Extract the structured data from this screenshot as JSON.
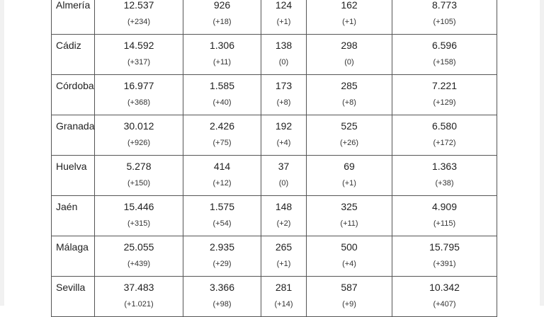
{
  "rows": [
    {
      "province": "Almería",
      "c1": "12.537",
      "d1": "(+234)",
      "c2": "926",
      "d2": "(+18)",
      "c3": "124",
      "d3": "(+1)",
      "c4": "162",
      "d4": "(+1)",
      "c5": "8.773",
      "d5": "(+105)"
    },
    {
      "province": "Cádiz",
      "c1": "14.592",
      "d1": "(+317)",
      "c2": "1.306",
      "d2": "(+11)",
      "c3": "138",
      "d3": "(0)",
      "c4": "298",
      "d4": "(0)",
      "c5": "6.596",
      "d5": "(+158)"
    },
    {
      "province": "Córdoba",
      "c1": "16.977",
      "d1": "(+368)",
      "c2": "1.585",
      "d2": "(+40)",
      "c3": "173",
      "d3": "(+8)",
      "c4": "285",
      "d4": "(+8)",
      "c5": "7.221",
      "d5": "(+129)"
    },
    {
      "province": "Granada",
      "c1": "30.012",
      "d1": "(+926)",
      "c2": "2.426",
      "d2": "(+75)",
      "c3": "192",
      "d3": "(+4)",
      "c4": "525",
      "d4": "(+26)",
      "c5": "6.580",
      "d5": "(+172)"
    },
    {
      "province": "Huelva",
      "c1": "5.278",
      "d1": "(+150)",
      "c2": "414",
      "d2": "(+12)",
      "c3": "37",
      "d3": "(0)",
      "c4": "69",
      "d4": "(+1)",
      "c5": "1.363",
      "d5": "(+38)"
    },
    {
      "province": "Jaén",
      "c1": "15.446",
      "d1": "(+315)",
      "c2": "1.575",
      "d2": "(+54)",
      "c3": "148",
      "d3": "(+2)",
      "c4": "325",
      "d4": "(+11)",
      "c5": "4.909",
      "d5": "(+115)"
    },
    {
      "province": "Málaga",
      "c1": "25.055",
      "d1": "(+439)",
      "c2": "2.935",
      "d2": "(+29)",
      "c3": "265",
      "d3": "(+1)",
      "c4": "500",
      "d4": "(+4)",
      "c5": "15.795",
      "d5": "(+391)"
    },
    {
      "province": "Sevilla",
      "c1": "37.483",
      "d1": "(+1.021)",
      "c2": "3.366",
      "d2": "(+98)",
      "c3": "281",
      "d3": "(+14)",
      "c4": "587",
      "d4": "(+9)",
      "c5": "10.342",
      "d5": "(+407)"
    }
  ]
}
